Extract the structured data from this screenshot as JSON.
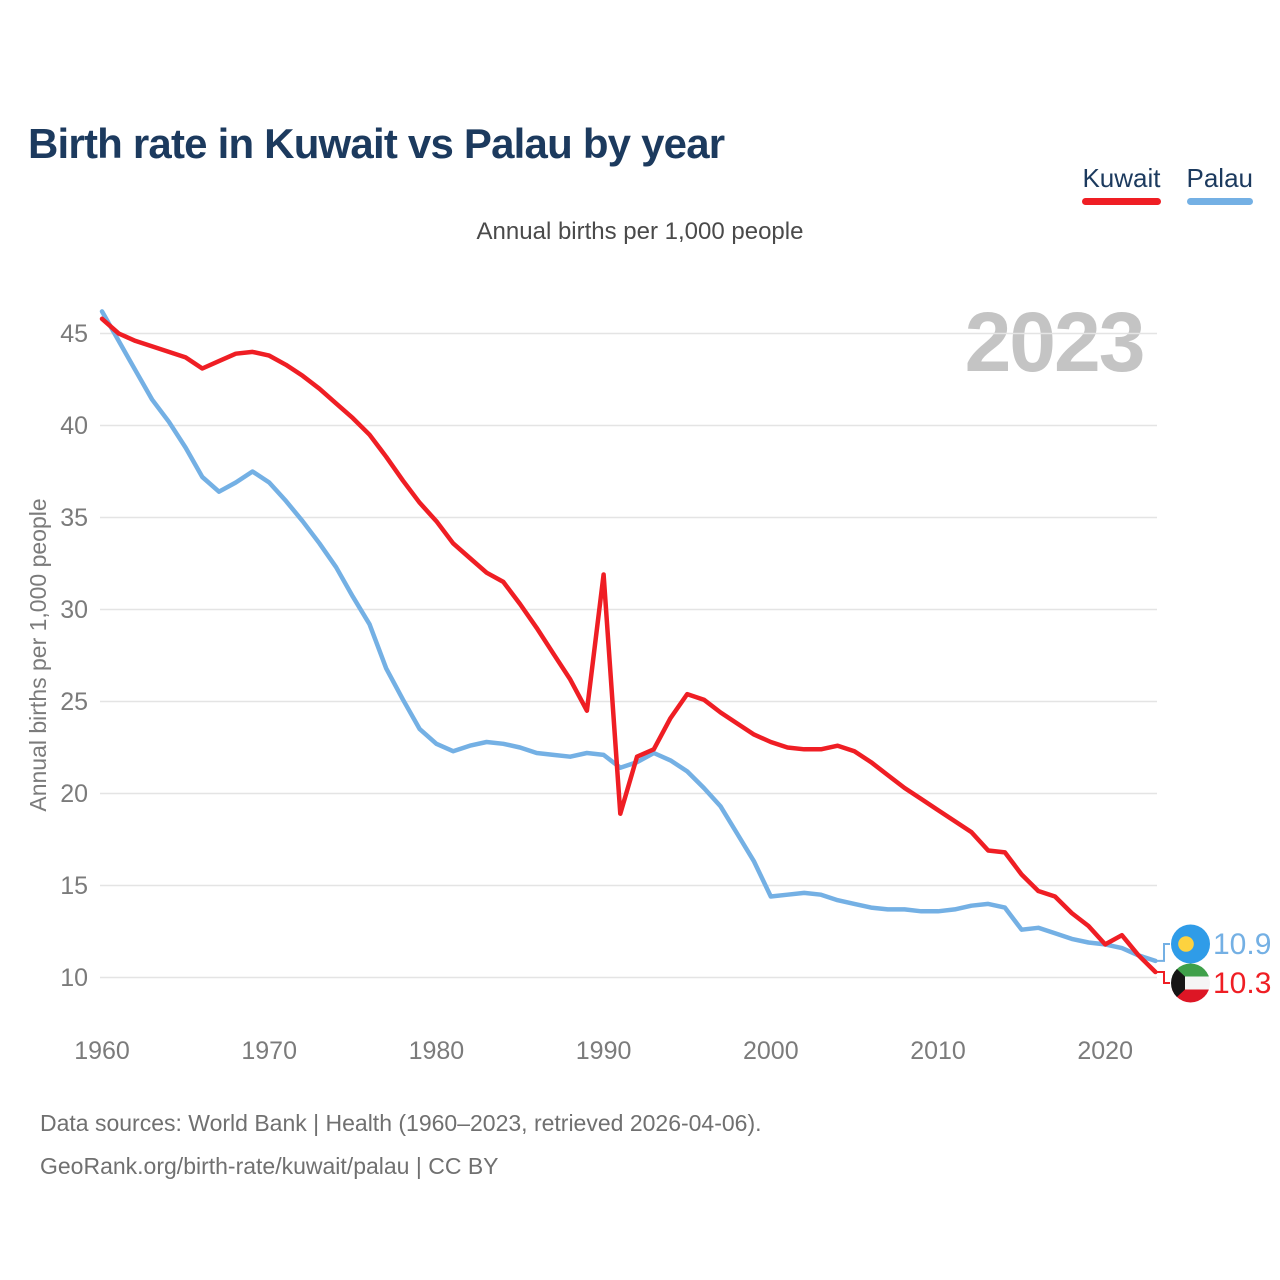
{
  "header": {
    "title": "Birth rate in Kuwait vs Palau by year"
  },
  "legend": [
    {
      "label": "Kuwait",
      "color": "#ef1e24"
    },
    {
      "label": "Palau",
      "color": "#74b0e4"
    }
  ],
  "subtitle": "Annual births per 1,000 people",
  "watermark": "2023",
  "footer": {
    "line1": "Data sources: World Bank | Health (1960–2023, retrieved 2026-04-06).",
    "line2": "GeoRank.org/birth-rate/kuwait/palau | CC BY"
  },
  "flags": {
    "palau": {
      "field": "#2f9ce8",
      "moon": "#fdd23f"
    },
    "kuwait": {
      "green": "#3fa04a",
      "white": "#f5f5f5",
      "red": "#dd1625",
      "black": "#161616"
    }
  },
  "chart_data": {
    "type": "line",
    "title": "Birth rate in Kuwait vs Palau by year",
    "xlabel": "",
    "ylabel": "Annual births per 1,000 people",
    "grid": true,
    "legend_position": "top-right",
    "ylim": [
      9,
      47
    ],
    "x_ticks": [
      1960,
      1970,
      1980,
      1990,
      2000,
      2010,
      2020
    ],
    "y_ticks": [
      10,
      15,
      20,
      25,
      30,
      35,
      40,
      45
    ],
    "years": [
      1960,
      1961,
      1962,
      1963,
      1964,
      1965,
      1966,
      1967,
      1968,
      1969,
      1970,
      1971,
      1972,
      1973,
      1974,
      1975,
      1976,
      1977,
      1978,
      1979,
      1980,
      1981,
      1982,
      1983,
      1984,
      1985,
      1986,
      1987,
      1988,
      1989,
      1990,
      1991,
      1992,
      1993,
      1994,
      1995,
      1996,
      1997,
      1998,
      1999,
      2000,
      2001,
      2002,
      2003,
      2004,
      2005,
      2006,
      2007,
      2008,
      2009,
      2010,
      2011,
      2012,
      2013,
      2014,
      2015,
      2016,
      2017,
      2018,
      2019,
      2020,
      2021,
      2022,
      2023
    ],
    "series": [
      {
        "name": "Kuwait",
        "color": "#ef1e24",
        "values": [
          45.8,
          45.0,
          44.6,
          44.3,
          44.0,
          43.7,
          43.1,
          43.5,
          43.9,
          44.0,
          43.8,
          43.3,
          42.7,
          42.0,
          41.2,
          40.4,
          39.5,
          38.3,
          37.0,
          35.8,
          34.8,
          33.6,
          32.8,
          32.0,
          31.5,
          30.3,
          29.0,
          27.6,
          26.2,
          24.5,
          31.9,
          18.9,
          22.0,
          22.4,
          24.1,
          25.4,
          25.1,
          24.4,
          23.8,
          23.2,
          22.8,
          22.5,
          22.4,
          22.4,
          22.6,
          22.3,
          21.7,
          21.0,
          20.3,
          19.7,
          19.1,
          18.5,
          17.9,
          16.9,
          16.8,
          15.6,
          14.7,
          14.4,
          13.5,
          12.8,
          11.8,
          12.3,
          11.2,
          10.3
        ]
      },
      {
        "name": "Palau",
        "color": "#74b0e4",
        "values": [
          46.2,
          44.6,
          43.0,
          41.4,
          40.2,
          38.8,
          37.2,
          36.4,
          36.9,
          37.5,
          36.9,
          35.9,
          34.8,
          33.6,
          32.3,
          30.7,
          29.2,
          26.8,
          25.1,
          23.5,
          22.7,
          22.3,
          22.6,
          22.8,
          22.7,
          22.5,
          22.2,
          22.1,
          22.0,
          22.2,
          22.1,
          21.4,
          21.7,
          22.2,
          21.8,
          21.2,
          20.3,
          19.3,
          17.8,
          16.3,
          14.4,
          14.5,
          14.6,
          14.5,
          14.2,
          14.0,
          13.8,
          13.7,
          13.7,
          13.6,
          13.6,
          13.7,
          13.9,
          14.0,
          13.8,
          12.6,
          12.7,
          12.4,
          12.1,
          11.9,
          11.8,
          11.6,
          11.2,
          10.9
        ]
      }
    ],
    "end_labels": [
      {
        "series": "Palau",
        "value": "10.9"
      },
      {
        "series": "Kuwait",
        "value": "10.3"
      }
    ]
  }
}
